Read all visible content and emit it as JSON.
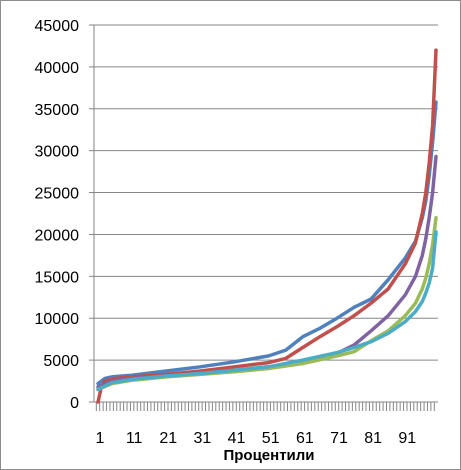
{
  "chart_data": {
    "type": "line",
    "title": "",
    "xlabel": "Процентили",
    "ylabel": "",
    "ylim": [
      0,
      45000
    ],
    "xlim": [
      1,
      100
    ],
    "yticks": [
      0,
      5000,
      10000,
      15000,
      20000,
      25000,
      30000,
      35000,
      40000,
      45000
    ],
    "yticklabels": [
      "0",
      "5000",
      "10000",
      "15000",
      "20000",
      "25000",
      "30000",
      "35000",
      "40000",
      "45000"
    ],
    "xticks": [
      1,
      11,
      21,
      31,
      41,
      51,
      61,
      71,
      81,
      91
    ],
    "xticklabels": [
      "1",
      "11",
      "21",
      "31",
      "41",
      "51",
      "61",
      "71",
      "81",
      "91"
    ],
    "grid": {
      "horizontal": true,
      "vertical": false
    },
    "legend": "none",
    "series": [
      {
        "color": "#4f81bd",
        "points": [
          [
            1,
            2200
          ],
          [
            3,
            2800
          ],
          [
            5,
            3000
          ],
          [
            11,
            3200
          ],
          [
            21,
            3700
          ],
          [
            31,
            4200
          ],
          [
            41,
            4800
          ],
          [
            51,
            5500
          ],
          [
            56,
            6200
          ],
          [
            61,
            7800
          ],
          [
            66,
            8800
          ],
          [
            71,
            10000
          ],
          [
            76,
            11300
          ],
          [
            81,
            12300
          ],
          [
            86,
            14600
          ],
          [
            91,
            17200
          ],
          [
            94,
            19200
          ],
          [
            96,
            22000
          ],
          [
            97,
            24000
          ],
          [
            98,
            27000
          ],
          [
            99,
            31000
          ],
          [
            100,
            35800
          ]
        ]
      },
      {
        "color": "#c0504d",
        "points": [
          [
            1,
            0
          ],
          [
            2,
            1800
          ],
          [
            3,
            2500
          ],
          [
            6,
            2800
          ],
          [
            11,
            3000
          ],
          [
            21,
            3300
          ],
          [
            31,
            3700
          ],
          [
            41,
            4200
          ],
          [
            51,
            4700
          ],
          [
            56,
            5200
          ],
          [
            61,
            6500
          ],
          [
            66,
            7800
          ],
          [
            71,
            9000
          ],
          [
            76,
            10300
          ],
          [
            81,
            11800
          ],
          [
            86,
            13500
          ],
          [
            91,
            16500
          ],
          [
            94,
            19000
          ],
          [
            96,
            22500
          ],
          [
            97,
            25000
          ],
          [
            98,
            28500
          ],
          [
            99,
            33000
          ],
          [
            100,
            42000
          ]
        ]
      },
      {
        "color": "#8064a2",
        "points": [
          [
            1,
            1800
          ],
          [
            5,
            2500
          ],
          [
            11,
            2800
          ],
          [
            21,
            3100
          ],
          [
            31,
            3400
          ],
          [
            41,
            3800
          ],
          [
            51,
            4200
          ],
          [
            61,
            4800
          ],
          [
            71,
            5800
          ],
          [
            76,
            6800
          ],
          [
            81,
            8500
          ],
          [
            86,
            10300
          ],
          [
            91,
            12800
          ],
          [
            94,
            15000
          ],
          [
            96,
            17500
          ],
          [
            97,
            19500
          ],
          [
            98,
            22000
          ],
          [
            99,
            25000
          ],
          [
            100,
            29300
          ]
        ]
      },
      {
        "color": "#9bbb59",
        "points": [
          [
            1,
            1500
          ],
          [
            5,
            2200
          ],
          [
            11,
            2600
          ],
          [
            21,
            3000
          ],
          [
            31,
            3300
          ],
          [
            41,
            3600
          ],
          [
            51,
            4000
          ],
          [
            61,
            4600
          ],
          [
            71,
            5500
          ],
          [
            76,
            6000
          ],
          [
            81,
            7300
          ],
          [
            86,
            8500
          ],
          [
            91,
            10300
          ],
          [
            94,
            11800
          ],
          [
            96,
            13500
          ],
          [
            97,
            14800
          ],
          [
            98,
            16500
          ],
          [
            99,
            18800
          ],
          [
            100,
            22000
          ]
        ]
      },
      {
        "color": "#4bacc6",
        "points": [
          [
            1,
            1500
          ],
          [
            5,
            2300
          ],
          [
            11,
            2700
          ],
          [
            21,
            3100
          ],
          [
            31,
            3400
          ],
          [
            41,
            3800
          ],
          [
            51,
            4200
          ],
          [
            61,
            5000
          ],
          [
            71,
            5900
          ],
          [
            76,
            6500
          ],
          [
            81,
            7200
          ],
          [
            86,
            8200
          ],
          [
            91,
            9600
          ],
          [
            94,
            10800
          ],
          [
            96,
            12000
          ],
          [
            97,
            13000
          ],
          [
            98,
            14200
          ],
          [
            99,
            16000
          ],
          [
            100,
            20300
          ]
        ]
      }
    ]
  }
}
